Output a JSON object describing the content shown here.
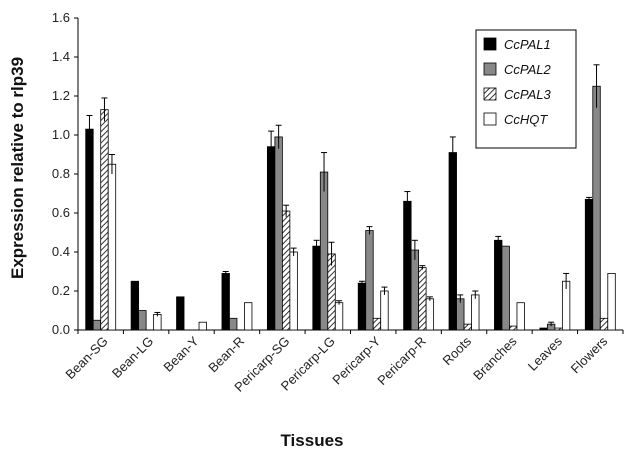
{
  "chart_data": {
    "type": "bar",
    "title": "",
    "xlabel": "Tissues",
    "ylabel": "Expression relative to rlp39",
    "ylim": [
      0,
      1.6
    ],
    "yticks": [
      "0.0",
      "0.2",
      "0.4",
      "0.6",
      "0.8",
      "1.0",
      "1.2",
      "1.4",
      "1.6"
    ],
    "grid": false,
    "legend_position": "top-right",
    "categories": [
      "Bean-SG",
      "Bean-LG",
      "Bean-Y",
      "Bean-R",
      "Pericarp-SG",
      "Pericarp-LG",
      "Pericarp-Y",
      "Pericarp-R",
      "Roots",
      "Branches",
      "Leaves",
      "Flowers"
    ],
    "series": [
      {
        "name": "CcPAL1",
        "pattern": "solid-black",
        "values": [
          1.03,
          0.25,
          0.17,
          0.29,
          0.94,
          0.43,
          0.24,
          0.66,
          0.91,
          0.46,
          0.01,
          0.67
        ],
        "errors": [
          0.07,
          0.0,
          0.0,
          0.01,
          0.08,
          0.03,
          0.01,
          0.05,
          0.08,
          0.02,
          0.0,
          0.01
        ]
      },
      {
        "name": "CcPAL2",
        "pattern": "solid-gray",
        "values": [
          0.05,
          0.1,
          0.0,
          0.06,
          0.99,
          0.81,
          0.51,
          0.41,
          0.16,
          0.43,
          0.03,
          1.25
        ],
        "errors": [
          0.0,
          0.0,
          0.0,
          0.0,
          0.06,
          0.1,
          0.02,
          0.05,
          0.02,
          0.0,
          0.01,
          0.11
        ]
      },
      {
        "name": "CcPAL3",
        "pattern": "hatched",
        "values": [
          1.13,
          0.0,
          0.0,
          0.0,
          0.61,
          0.39,
          0.06,
          0.32,
          0.03,
          0.02,
          0.01,
          0.06
        ],
        "errors": [
          0.06,
          0.0,
          0.0,
          0.0,
          0.03,
          0.06,
          0.0,
          0.01,
          0.0,
          0.0,
          0.0,
          0.0
        ]
      },
      {
        "name": "CcHQT",
        "pattern": "white",
        "values": [
          0.85,
          0.08,
          0.04,
          0.14,
          0.4,
          0.14,
          0.2,
          0.16,
          0.18,
          0.14,
          0.25,
          0.29
        ],
        "errors": [
          0.05,
          0.01,
          0.0,
          0.0,
          0.02,
          0.01,
          0.02,
          0.01,
          0.02,
          0.0,
          0.04,
          0.0
        ]
      }
    ]
  }
}
